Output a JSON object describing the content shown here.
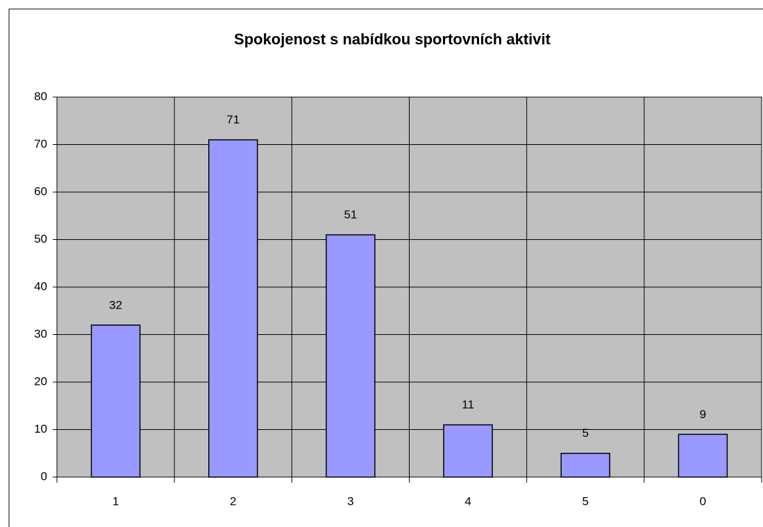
{
  "chart_data": {
    "type": "bar",
    "title": "Spokojenost s nabídkou sportovních aktivit",
    "categories": [
      "1",
      "2",
      "3",
      "4",
      "5",
      "0"
    ],
    "values": [
      32,
      71,
      51,
      11,
      5,
      9
    ],
    "color": "#9999ff",
    "plot_background": "#c0c0c0",
    "ylim": [
      0,
      80
    ],
    "yticks": [
      0,
      10,
      20,
      30,
      40,
      50,
      60,
      70,
      80
    ],
    "grid": true
  }
}
